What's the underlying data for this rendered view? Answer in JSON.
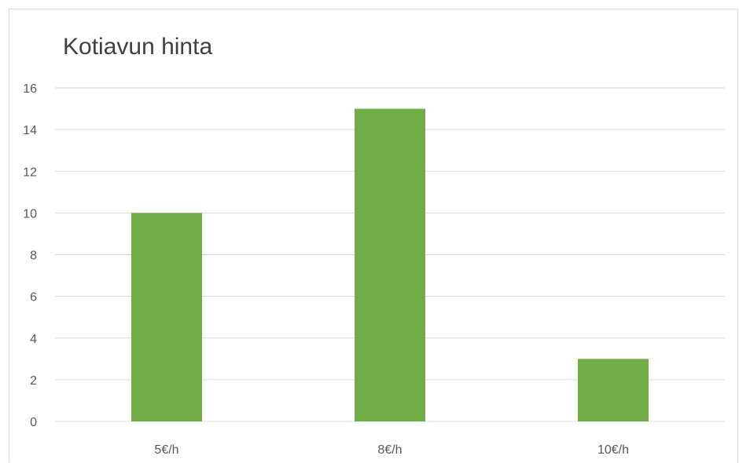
{
  "chart_data": {
    "type": "bar",
    "title": "Kotiavun hinta",
    "categories": [
      "5€/h",
      "8€/h",
      "10€/h"
    ],
    "values": [
      10,
      15,
      3
    ],
    "ylim": [
      0,
      16
    ],
    "yticks": [
      0,
      2,
      4,
      6,
      8,
      10,
      12,
      14,
      16
    ],
    "grid": true,
    "legend": "none",
    "colors": {
      "bar": "#70ad47",
      "grid": "#d9d9d9",
      "axis": "#d9d9d9",
      "text": "#595959",
      "title": "#404040"
    }
  }
}
